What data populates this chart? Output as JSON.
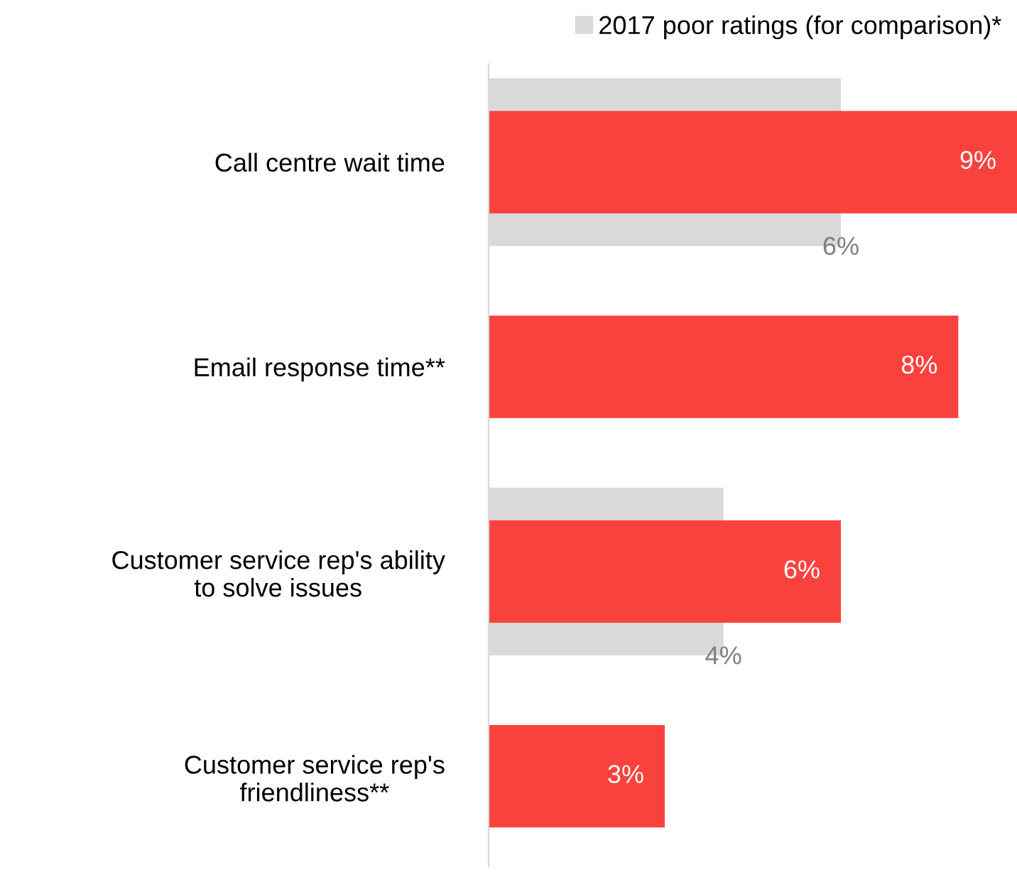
{
  "chart_data": {
    "type": "bar",
    "orientation": "horizontal",
    "categories": [
      "Call centre wait time",
      "Email response time**",
      "Customer service rep's ability\nto solve issues",
      "Customer service rep's\nfriendliness**"
    ],
    "series": [
      {
        "name": "2017 poor ratings (for comparison)*",
        "color": "#d9d9d9",
        "values": [
          6,
          null,
          4,
          null
        ],
        "value_labels": [
          "6%",
          null,
          "4%",
          null
        ]
      },
      {
        "color": "#f9423e",
        "values": [
          9,
          8,
          6,
          3
        ],
        "value_labels": [
          "9%",
          "8%",
          "6%",
          "3%"
        ]
      }
    ],
    "legend": "top right",
    "grid": false
  }
}
